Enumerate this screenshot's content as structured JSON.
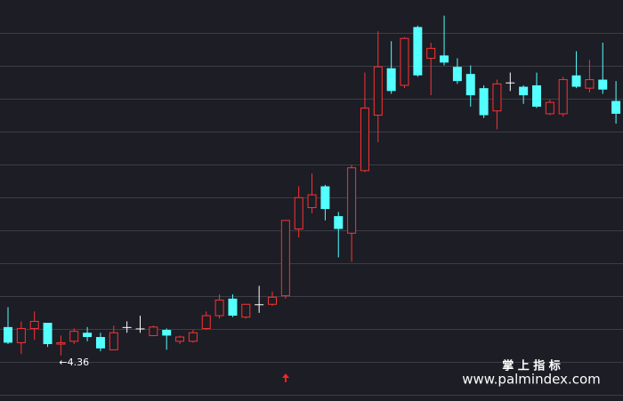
{
  "chart_data": {
    "type": "candlestick",
    "open": [
      4.56,
      4.45,
      4.55,
      4.59,
      4.44,
      4.46,
      4.52,
      4.49,
      4.4,
      4.56,
      4.55,
      4.5,
      4.54,
      4.46,
      4.46,
      4.55,
      4.64,
      4.76,
      4.63,
      4.72,
      4.72,
      4.78,
      5.25,
      5.4,
      5.55,
      5.34,
      5.22,
      5.66,
      6.05,
      6.38,
      6.26,
      6.67,
      6.45,
      6.47,
      6.39,
      6.34,
      6.24,
      6.08,
      6.28,
      6.25,
      6.26,
      6.06,
      6.06,
      6.33,
      6.24,
      6.3,
      6.15
    ],
    "high": [
      4.7,
      4.6,
      4.67,
      4.59,
      4.5,
      4.55,
      4.56,
      4.52,
      4.57,
      4.6,
      4.64,
      4.57,
      4.55,
      4.5,
      4.54,
      4.67,
      4.79,
      4.79,
      4.72,
      4.85,
      4.81,
      5.31,
      5.55,
      5.64,
      5.56,
      5.37,
      5.7,
      6.35,
      6.64,
      6.57,
      6.6,
      6.68,
      6.56,
      6.75,
      6.45,
      6.4,
      6.26,
      6.3,
      6.35,
      6.26,
      6.35,
      6.16,
      6.32,
      6.5,
      6.44,
      6.56,
      6.29
    ],
    "low": [
      4.44,
      4.37,
      4.47,
      4.42,
      4.36,
      4.44,
      4.46,
      4.39,
      4.4,
      4.52,
      4.52,
      4.5,
      4.4,
      4.44,
      4.45,
      4.54,
      4.62,
      4.63,
      4.62,
      4.66,
      4.71,
      4.76,
      5.19,
      5.36,
      5.31,
      5.05,
      5.02,
      5.65,
      5.86,
      6.2,
      6.24,
      6.32,
      6.19,
      6.4,
      6.27,
      6.11,
      6.03,
      5.95,
      6.22,
      6.13,
      6.1,
      6.05,
      6.04,
      6.24,
      6.21,
      6.2,
      5.99
    ],
    "close": [
      4.45,
      4.55,
      4.6,
      4.44,
      4.45,
      4.53,
      4.49,
      4.41,
      4.52,
      4.56,
      4.55,
      4.56,
      4.5,
      4.49,
      4.52,
      4.64,
      4.75,
      4.64,
      4.72,
      4.72,
      4.77,
      5.31,
      5.47,
      5.49,
      5.39,
      5.25,
      5.68,
      6.1,
      6.39,
      6.22,
      6.59,
      6.33,
      6.52,
      6.42,
      6.29,
      6.19,
      6.05,
      6.27,
      6.28,
      6.19,
      6.11,
      6.14,
      6.3,
      6.25,
      6.3,
      6.23,
      6.06
    ],
    "colors": {
      "up": "#ff3232",
      "down": "#54ffff",
      "flat": "#ffffff"
    },
    "ylim": [
      4.04,
      6.86
    ],
    "annotations": [
      {
        "text": "←4.36",
        "value": 4.36
      }
    ],
    "watermark": {
      "title": "掌 上 指 标",
      "url": "www.palmindex.com"
    }
  }
}
